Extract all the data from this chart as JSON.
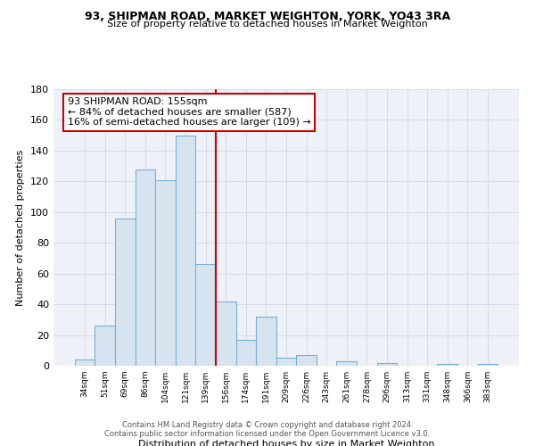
{
  "title": "93, SHIPMAN ROAD, MARKET WEIGHTON, YORK, YO43 3RA",
  "subtitle": "Size of property relative to detached houses in Market Weighton",
  "xlabel": "Distribution of detached houses by size in Market Weighton",
  "ylabel": "Number of detached properties",
  "bar_labels": [
    "34sqm",
    "51sqm",
    "69sqm",
    "86sqm",
    "104sqm",
    "121sqm",
    "139sqm",
    "156sqm",
    "174sqm",
    "191sqm",
    "209sqm",
    "226sqm",
    "243sqm",
    "261sqm",
    "278sqm",
    "296sqm",
    "313sqm",
    "331sqm",
    "348sqm",
    "366sqm",
    "383sqm"
  ],
  "bar_values": [
    4,
    26,
    96,
    128,
    121,
    150,
    66,
    42,
    17,
    32,
    5,
    7,
    0,
    3,
    0,
    2,
    0,
    0,
    1,
    0,
    1
  ],
  "bar_color": "#d6e4f0",
  "bar_edge_color": "#7aaed6",
  "vline_color": "#cc0000",
  "vline_index": 7,
  "annotation_title": "93 SHIPMAN ROAD: 155sqm",
  "annotation_line1": "← 84% of detached houses are smaller (587)",
  "annotation_line2": "16% of semi-detached houses are larger (109) →",
  "annotation_box_edge": "#cc0000",
  "ylim": [
    0,
    180
  ],
  "yticks": [
    0,
    20,
    40,
    60,
    80,
    100,
    120,
    140,
    160,
    180
  ],
  "footer1": "Contains HM Land Registry data © Crown copyright and database right 2024.",
  "footer2": "Contains public sector information licensed under the Open Government Licence v3.0.",
  "bg_color": "#ffffff",
  "plot_bg_color": "#eef2f8",
  "grid_color": "#d0d8e8"
}
